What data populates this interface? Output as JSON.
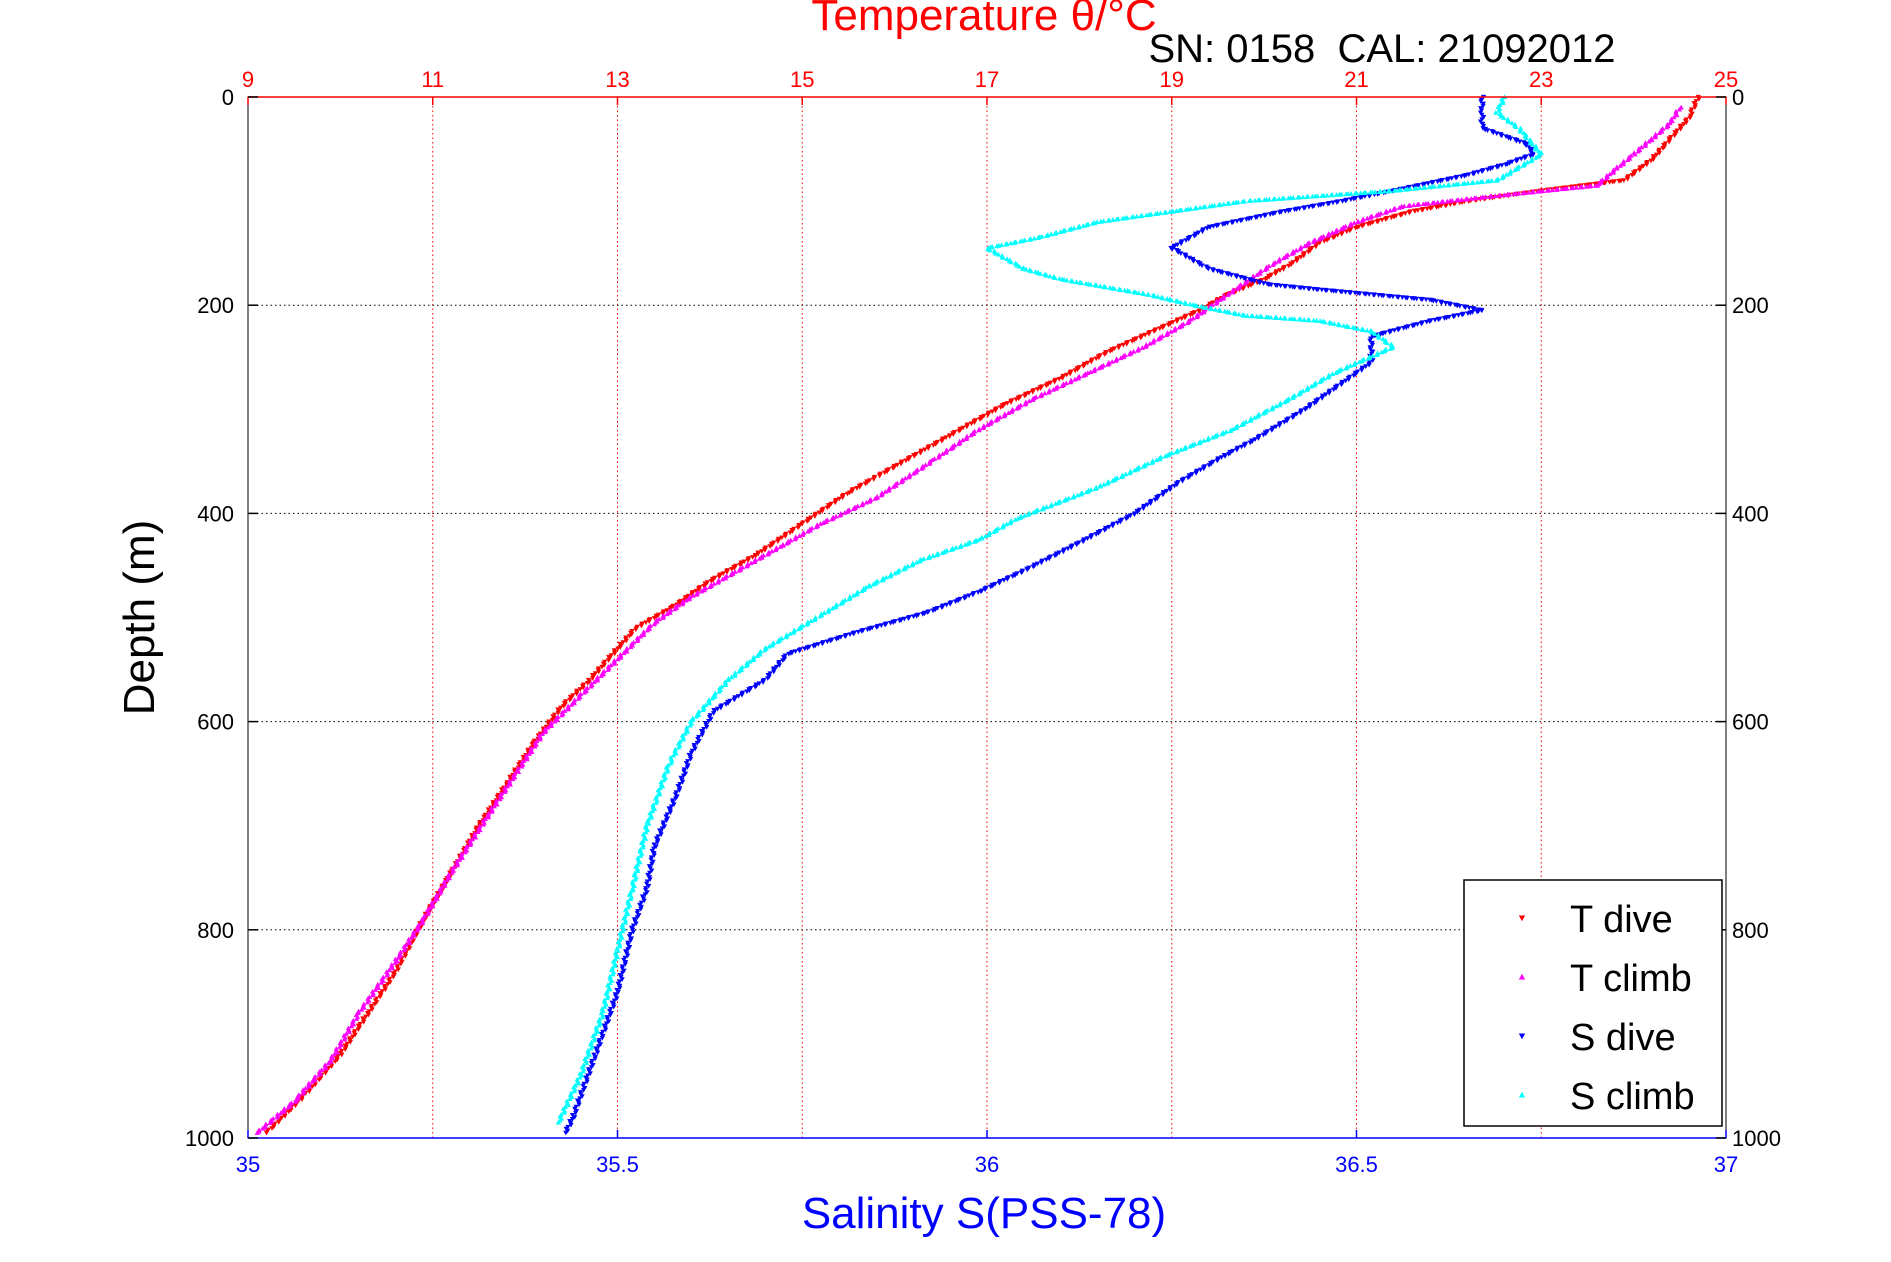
{
  "chart_data": {
    "type": "scatter",
    "title": "Temperature θ/°C",
    "subtitle": "SN: 0158  CAL: 21092012",
    "xlabel_top": "Temperature θ/°C",
    "xlabel_bottom": "Salinity S(PSS-78)",
    "ylabel": "Depth (m)",
    "y_reversed": true,
    "ylim": [
      0,
      1000
    ],
    "yticks": [
      "0",
      "200",
      "400",
      "600",
      "800",
      "1000"
    ],
    "yticks_right": [
      "0",
      "200",
      "400",
      "600",
      "800",
      "1000"
    ],
    "x_top_lim": [
      9,
      25
    ],
    "x_top_ticks": [
      "9",
      "11",
      "13",
      "15",
      "17",
      "19",
      "21",
      "23",
      "25"
    ],
    "x_bottom_lim": [
      35,
      37
    ],
    "x_bottom_ticks": [
      "35",
      "35.5",
      "36",
      "36.5",
      "37"
    ],
    "grid": true,
    "legend_position": "bottom-right",
    "colors": {
      "temperature_axis": "#ff0000",
      "salinity_axis": "#0000ff",
      "grid_top": "#ff0000",
      "grid_depth": "#000000"
    },
    "series": [
      {
        "name": "T dive",
        "axis": "temperature",
        "marker": "triangle-down",
        "color": "#ff0000",
        "points": [
          [
            24.7,
            0
          ],
          [
            24.6,
            20
          ],
          [
            24.4,
            40
          ],
          [
            24.2,
            60
          ],
          [
            23.9,
            80
          ],
          [
            23.0,
            90
          ],
          [
            22.2,
            100
          ],
          [
            21.6,
            110
          ],
          [
            21.0,
            125
          ],
          [
            20.6,
            140
          ],
          [
            20.3,
            160
          ],
          [
            20.0,
            175
          ],
          [
            19.6,
            190
          ],
          [
            19.3,
            205
          ],
          [
            18.8,
            225
          ],
          [
            18.3,
            245
          ],
          [
            17.8,
            270
          ],
          [
            17.2,
            295
          ],
          [
            16.6,
            325
          ],
          [
            16.2,
            345
          ],
          [
            15.8,
            365
          ],
          [
            15.5,
            380
          ],
          [
            15.0,
            410
          ],
          [
            14.5,
            440
          ],
          [
            14.0,
            465
          ],
          [
            13.6,
            490
          ],
          [
            13.2,
            510
          ],
          [
            13.0,
            530
          ],
          [
            12.7,
            560
          ],
          [
            12.4,
            585
          ],
          [
            12.1,
            620
          ],
          [
            11.8,
            660
          ],
          [
            11.5,
            700
          ],
          [
            11.2,
            745
          ],
          [
            10.9,
            790
          ],
          [
            10.6,
            840
          ],
          [
            10.3,
            880
          ],
          [
            10.0,
            920
          ],
          [
            9.6,
            960
          ],
          [
            9.2,
            995
          ]
        ]
      },
      {
        "name": "T climb",
        "axis": "temperature",
        "marker": "triangle-up",
        "color": "#ff00ff",
        "points": [
          [
            24.5,
            10
          ],
          [
            24.4,
            25
          ],
          [
            24.2,
            40
          ],
          [
            24.0,
            55
          ],
          [
            23.8,
            70
          ],
          [
            23.6,
            85
          ],
          [
            22.5,
            95
          ],
          [
            21.5,
            105
          ],
          [
            21.0,
            120
          ],
          [
            20.5,
            140
          ],
          [
            20.1,
            160
          ],
          [
            19.6,
            190
          ],
          [
            19.2,
            215
          ],
          [
            18.7,
            240
          ],
          [
            18.1,
            265
          ],
          [
            17.5,
            290
          ],
          [
            16.9,
            320
          ],
          [
            16.4,
            350
          ],
          [
            15.8,
            385
          ],
          [
            15.2,
            410
          ],
          [
            14.8,
            430
          ],
          [
            14.3,
            455
          ],
          [
            13.8,
            480
          ],
          [
            13.4,
            505
          ],
          [
            13.0,
            540
          ],
          [
            12.6,
            575
          ],
          [
            12.2,
            610
          ],
          [
            11.9,
            650
          ],
          [
            11.6,
            690
          ],
          [
            11.2,
            745
          ],
          [
            10.9,
            790
          ],
          [
            10.6,
            830
          ],
          [
            10.2,
            880
          ],
          [
            9.9,
            925
          ],
          [
            9.5,
            965
          ],
          [
            9.1,
            995
          ]
        ]
      },
      {
        "name": "S dive",
        "axis": "salinity",
        "marker": "triangle-down",
        "color": "#0000ff",
        "points": [
          [
            36.67,
            0
          ],
          [
            36.67,
            15
          ],
          [
            36.67,
            30
          ],
          [
            36.73,
            45
          ],
          [
            36.74,
            55
          ],
          [
            36.7,
            65
          ],
          [
            36.65,
            75
          ],
          [
            36.55,
            90
          ],
          [
            36.48,
            100
          ],
          [
            36.4,
            110
          ],
          [
            36.3,
            125
          ],
          [
            36.25,
            145
          ],
          [
            36.3,
            165
          ],
          [
            36.38,
            180
          ],
          [
            36.45,
            185
          ],
          [
            36.6,
            195
          ],
          [
            36.67,
            205
          ],
          [
            36.6,
            215
          ],
          [
            36.52,
            230
          ],
          [
            36.52,
            255
          ],
          [
            36.48,
            275
          ],
          [
            36.43,
            300
          ],
          [
            36.36,
            330
          ],
          [
            36.32,
            345
          ],
          [
            36.26,
            370
          ],
          [
            36.2,
            400
          ],
          [
            36.12,
            430
          ],
          [
            36.05,
            455
          ],
          [
            35.99,
            475
          ],
          [
            35.92,
            495
          ],
          [
            35.82,
            515
          ],
          [
            35.73,
            535
          ],
          [
            35.7,
            560
          ],
          [
            35.63,
            590
          ],
          [
            35.6,
            630
          ],
          [
            35.58,
            670
          ],
          [
            35.55,
            720
          ],
          [
            35.54,
            760
          ],
          [
            35.52,
            800
          ],
          [
            35.5,
            860
          ],
          [
            35.47,
            920
          ],
          [
            35.44,
            980
          ],
          [
            35.43,
            995
          ]
        ]
      },
      {
        "name": "S climb",
        "axis": "salinity",
        "marker": "triangle-up",
        "color": "#00ffff",
        "points": [
          [
            36.7,
            0
          ],
          [
            36.69,
            15
          ],
          [
            36.72,
            30
          ],
          [
            36.75,
            55
          ],
          [
            36.69,
            80
          ],
          [
            36.55,
            90
          ],
          [
            36.35,
            100
          ],
          [
            36.25,
            110
          ],
          [
            36.15,
            120
          ],
          [
            36.07,
            135
          ],
          [
            36.0,
            145
          ],
          [
            36.05,
            165
          ],
          [
            36.1,
            175
          ],
          [
            36.18,
            185
          ],
          [
            36.22,
            190
          ],
          [
            36.28,
            200
          ],
          [
            36.35,
            210
          ],
          [
            36.45,
            215
          ],
          [
            36.52,
            225
          ],
          [
            36.55,
            240
          ],
          [
            36.47,
            265
          ],
          [
            36.41,
            290
          ],
          [
            36.33,
            320
          ],
          [
            36.24,
            345
          ],
          [
            36.15,
            375
          ],
          [
            36.04,
            405
          ],
          [
            35.99,
            425
          ],
          [
            35.91,
            445
          ],
          [
            35.84,
            470
          ],
          [
            35.77,
            500
          ],
          [
            35.7,
            530
          ],
          [
            35.65,
            560
          ],
          [
            35.6,
            600
          ],
          [
            35.57,
            640
          ],
          [
            35.54,
            700
          ],
          [
            35.52,
            760
          ],
          [
            35.5,
            820
          ],
          [
            35.48,
            880
          ],
          [
            35.45,
            940
          ],
          [
            35.42,
            985
          ]
        ]
      }
    ]
  }
}
